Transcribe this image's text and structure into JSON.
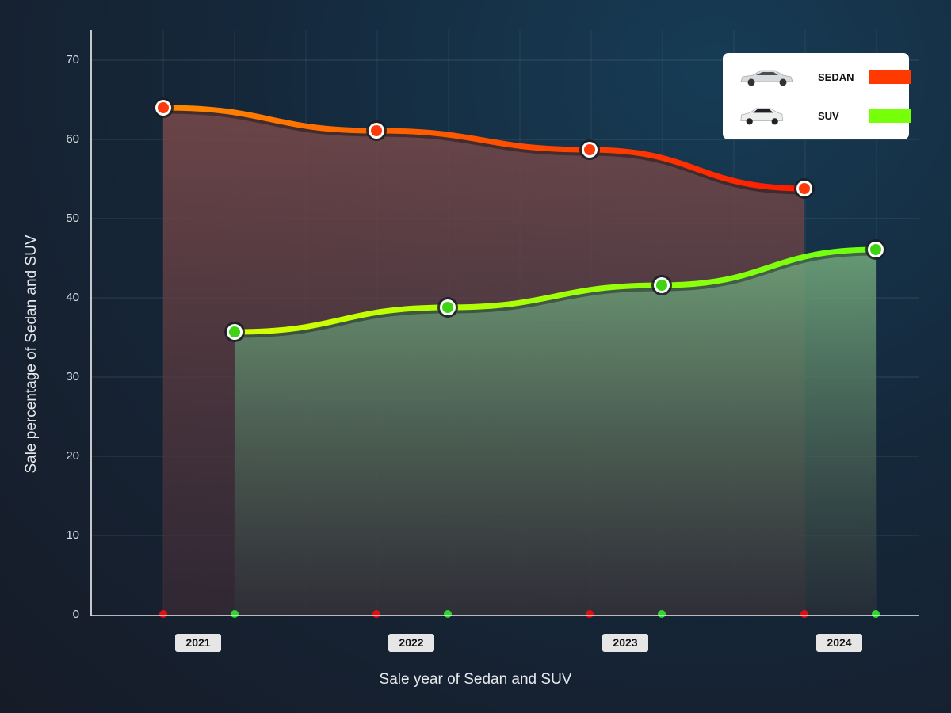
{
  "chart_data": {
    "type": "area",
    "title": "",
    "xlabel": "Sale year of Sedan and SUV",
    "ylabel": "Sale percentage of Sedan and SUV",
    "ylim": [
      0,
      70
    ],
    "yticks": [
      0,
      10,
      20,
      30,
      40,
      50,
      60,
      70
    ],
    "categories": [
      "2021",
      "2022",
      "2023",
      "2024"
    ],
    "grid": true,
    "legend_position": "top-right",
    "series": [
      {
        "name": "SEDAN",
        "color": "#ff3a00",
        "values": [
          64.0,
          61.1,
          58.7,
          53.8
        ]
      },
      {
        "name": "SUV",
        "color": "#77ff0a",
        "values": [
          35.7,
          38.8,
          41.6,
          46.1
        ]
      }
    ]
  },
  "axis": {
    "yticks": [
      "0",
      "10",
      "20",
      "30",
      "40",
      "50",
      "60",
      "70"
    ],
    "xticks": [
      "2021",
      "2022",
      "2023",
      "2024"
    ],
    "xlabel": "Sale year of Sedan and SUV",
    "ylabel": "Sale percentage of Sedan and SUV"
  },
  "legend": {
    "items": [
      {
        "label": "SEDAN",
        "color": "#ff3a00",
        "icon": "sedan-car-icon"
      },
      {
        "label": "SUV",
        "color": "#77ff0a",
        "icon": "suv-car-icon"
      }
    ]
  }
}
